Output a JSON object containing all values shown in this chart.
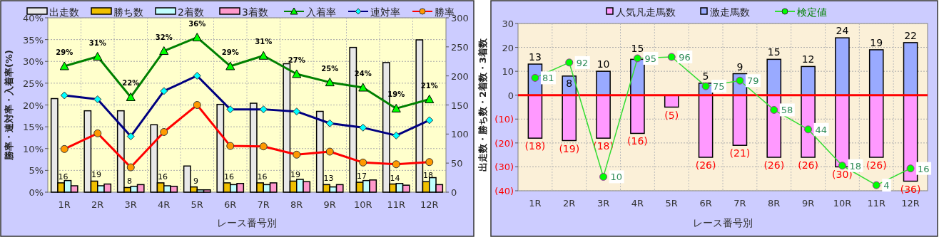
{
  "chart_data": [
    {
      "type": "bar",
      "xlabel": "レース番号別",
      "ylabel": "勝率・連対率・入着率(%)",
      "y2label": "出走数・勝ち数・2着数・3着数",
      "categories": [
        "1R",
        "2R",
        "3R",
        "4R",
        "5R",
        "6R",
        "7R",
        "8R",
        "9R",
        "10R",
        "11R",
        "12R"
      ],
      "ylim": [
        0,
        40
      ],
      "yticks": [
        {
          "value": 0,
          "label": "0%"
        },
        {
          "value": 5,
          "label": "5%"
        },
        {
          "value": 10,
          "label": "10%"
        },
        {
          "value": 15,
          "label": "15%"
        },
        {
          "value": 20,
          "label": "20%"
        },
        {
          "value": 25,
          "label": "25%"
        },
        {
          "value": 30,
          "label": "30%"
        },
        {
          "value": 35,
          "label": "35%"
        },
        {
          "value": 40,
          "label": "40%"
        }
      ],
      "y2lim": [
        0,
        300
      ],
      "y2ticks": [
        0,
        50,
        100,
        150,
        200,
        250,
        300
      ],
      "grid": true,
      "legend": "top",
      "series": [
        {
          "name": "出走数",
          "type": "bar",
          "axis": "y2",
          "color": "#e8e8e8",
          "values": [
            161,
            140,
            140,
            116,
            45,
            151,
            153,
            221,
            139,
            249,
            223,
            262
          ]
        },
        {
          "name": "勝ち数",
          "type": "bar",
          "axis": "y2",
          "color": "#f0c000",
          "values": [
            16,
            19,
            8,
            16,
            9,
            16,
            16,
            19,
            13,
            17,
            14,
            18
          ],
          "data_labels": true
        },
        {
          "name": "2着数",
          "type": "bar",
          "axis": "y2",
          "color": "#c0ffff",
          "values": [
            20,
            11,
            10,
            11,
            4,
            13,
            13,
            22,
            9,
            20,
            15,
            25
          ]
        },
        {
          "name": "3着数",
          "type": "bar",
          "axis": "y2",
          "color": "#ff99cc",
          "values": [
            11,
            14,
            13,
            10,
            4,
            15,
            16,
            18,
            13,
            21,
            12,
            13
          ]
        },
        {
          "name": "入着率",
          "type": "line",
          "color": "#008000",
          "marker": "triangle",
          "values": [
            28.9,
            31.1,
            21.8,
            32.4,
            35.5,
            28.9,
            31.3,
            27.1,
            25.2,
            24.0,
            19.2,
            21.3
          ],
          "value_labels": [
            "29%",
            "31%",
            "22%",
            "32%",
            "36%",
            "29%",
            "31%",
            "27%",
            "25%",
            "24%",
            "19%",
            "21%"
          ]
        },
        {
          "name": "連対率",
          "type": "line",
          "color": "#000080",
          "marker": "diamond",
          "values": [
            22.2,
            21.3,
            12.8,
            23.2,
            26.7,
            19.0,
            19.0,
            18.5,
            15.8,
            14.8,
            13.0,
            16.5
          ]
        },
        {
          "name": "勝率",
          "type": "line",
          "color": "#ff0000",
          "marker": "circle",
          "values": [
            9.9,
            13.5,
            5.7,
            13.8,
            20.0,
            10.6,
            10.5,
            8.6,
            9.3,
            6.8,
            6.4,
            6.9
          ]
        }
      ]
    },
    {
      "type": "bar",
      "stacked": true,
      "xlabel": "レース番号別",
      "categories": [
        "1R",
        "2R",
        "3R",
        "4R",
        "5R",
        "6R",
        "7R",
        "8R",
        "9R",
        "10R",
        "11R",
        "12R"
      ],
      "ylim": [
        -40,
        30
      ],
      "yticks": [
        {
          "value": 30,
          "label": "30"
        },
        {
          "value": 20,
          "label": "20"
        },
        {
          "value": 10,
          "label": "10"
        },
        {
          "value": 0,
          "label": "0"
        },
        {
          "value": -10,
          "label": "(10)"
        },
        {
          "value": -20,
          "label": "(20)"
        },
        {
          "value": -30,
          "label": "(30)"
        },
        {
          "value": -40,
          "label": "(40)"
        }
      ],
      "y2lim": [
        0,
        120
      ],
      "grid": true,
      "legend": "top",
      "ref_lines": [
        {
          "axis": "y",
          "value": 0,
          "color": "#ff0000"
        }
      ],
      "series": [
        {
          "name": "人気凡走馬数",
          "type": "bar",
          "color": "#ff99ff",
          "values": [
            -18,
            -19,
            -18,
            -16,
            -5,
            -26,
            -21,
            -26,
            -26,
            -30,
            -26,
            -36
          ],
          "value_labels": [
            "(18)",
            "(19)",
            "(18)",
            "(16)",
            "(5)",
            "(26)",
            "(21)",
            "(26)",
            "(26)",
            "(30)",
            "(26)",
            "(36)"
          ]
        },
        {
          "name": "激走馬数",
          "type": "bar",
          "color": "#99aaff",
          "values": [
            13,
            8,
            10,
            15,
            null,
            5,
            9,
            15,
            12,
            24,
            19,
            22
          ],
          "data_labels": true
        },
        {
          "name": "検定値",
          "type": "line",
          "axis": "y2",
          "color": "#33dd33",
          "marker": "circle",
          "values": [
            81,
            92,
            10,
            95,
            96,
            75,
            79,
            58,
            44,
            18,
            4,
            16
          ],
          "data_labels": true
        }
      ]
    }
  ]
}
